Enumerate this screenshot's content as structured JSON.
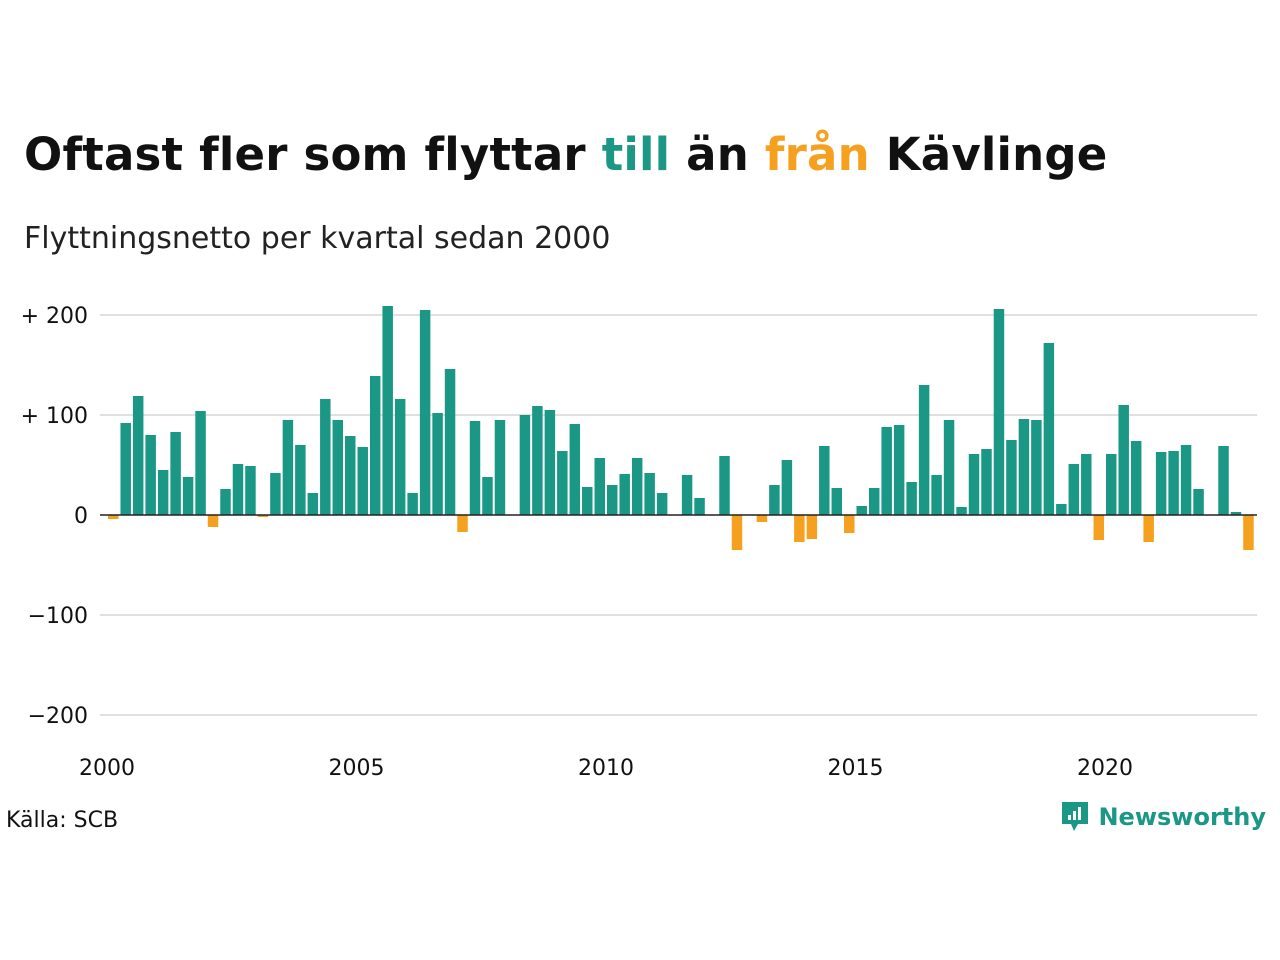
{
  "header": {
    "title_part1": "Oftast fler som flyttar ",
    "title_till": "till",
    "title_part2": " än ",
    "title_fran": "från",
    "title_part3": " Kävlinge",
    "subtitle": "Flyttningsnetto per kvartal sedan 2000"
  },
  "footer": {
    "source": "Källa: SCB",
    "brand": "Newsworthy",
    "brand_icon": "newsworthy-logo-icon"
  },
  "colors": {
    "positive": "#1a9785",
    "negative": "#f5a01f",
    "grid": "#e0e0e0",
    "zero_line": "#222222"
  },
  "chart_data": {
    "type": "bar",
    "title": "Oftast fler som flyttar till än från Kävlinge",
    "subtitle": "Flyttningsnetto per kvartal sedan 2000",
    "xlabel": "",
    "ylabel": "",
    "ylim": [
      -200,
      200
    ],
    "y_ticks": [
      {
        "value": 200,
        "label": "+ 200"
      },
      {
        "value": 100,
        "label": "+ 100"
      },
      {
        "value": 0,
        "label": "0"
      },
      {
        "value": -100,
        "label": "−100"
      },
      {
        "value": -200,
        "label": "−200"
      }
    ],
    "x_ticks": [
      {
        "value": 2000,
        "label": "2000"
      },
      {
        "value": 2005,
        "label": "2005"
      },
      {
        "value": 2010,
        "label": "2010"
      },
      {
        "value": 2015,
        "label": "2015"
      },
      {
        "value": 2020,
        "label": "2020"
      }
    ],
    "grid": true,
    "start_year": 2000,
    "start_quarter": 1,
    "values": [
      -4,
      92,
      119,
      80,
      45,
      83,
      38,
      104,
      -12,
      26,
      51,
      49,
      -2,
      42,
      95,
      70,
      22,
      116,
      95,
      79,
      68,
      139,
      209,
      116,
      22,
      205,
      102,
      146,
      -17,
      94,
      38,
      95,
      0,
      100,
      109,
      105,
      64,
      91,
      28,
      57,
      30,
      41,
      57,
      42,
      22,
      0,
      40,
      17,
      0,
      59,
      -35,
      0,
      -7,
      30,
      55,
      -27,
      -24,
      69,
      27,
      -18,
      9,
      27,
      88,
      90,
      33,
      130,
      40,
      95,
      8,
      61,
      66,
      206,
      75,
      96,
      95,
      172,
      11,
      51,
      61,
      -25,
      61,
      110,
      74,
      -27,
      63,
      64,
      70,
      26,
      0,
      69,
      3,
      -35
    ]
  }
}
